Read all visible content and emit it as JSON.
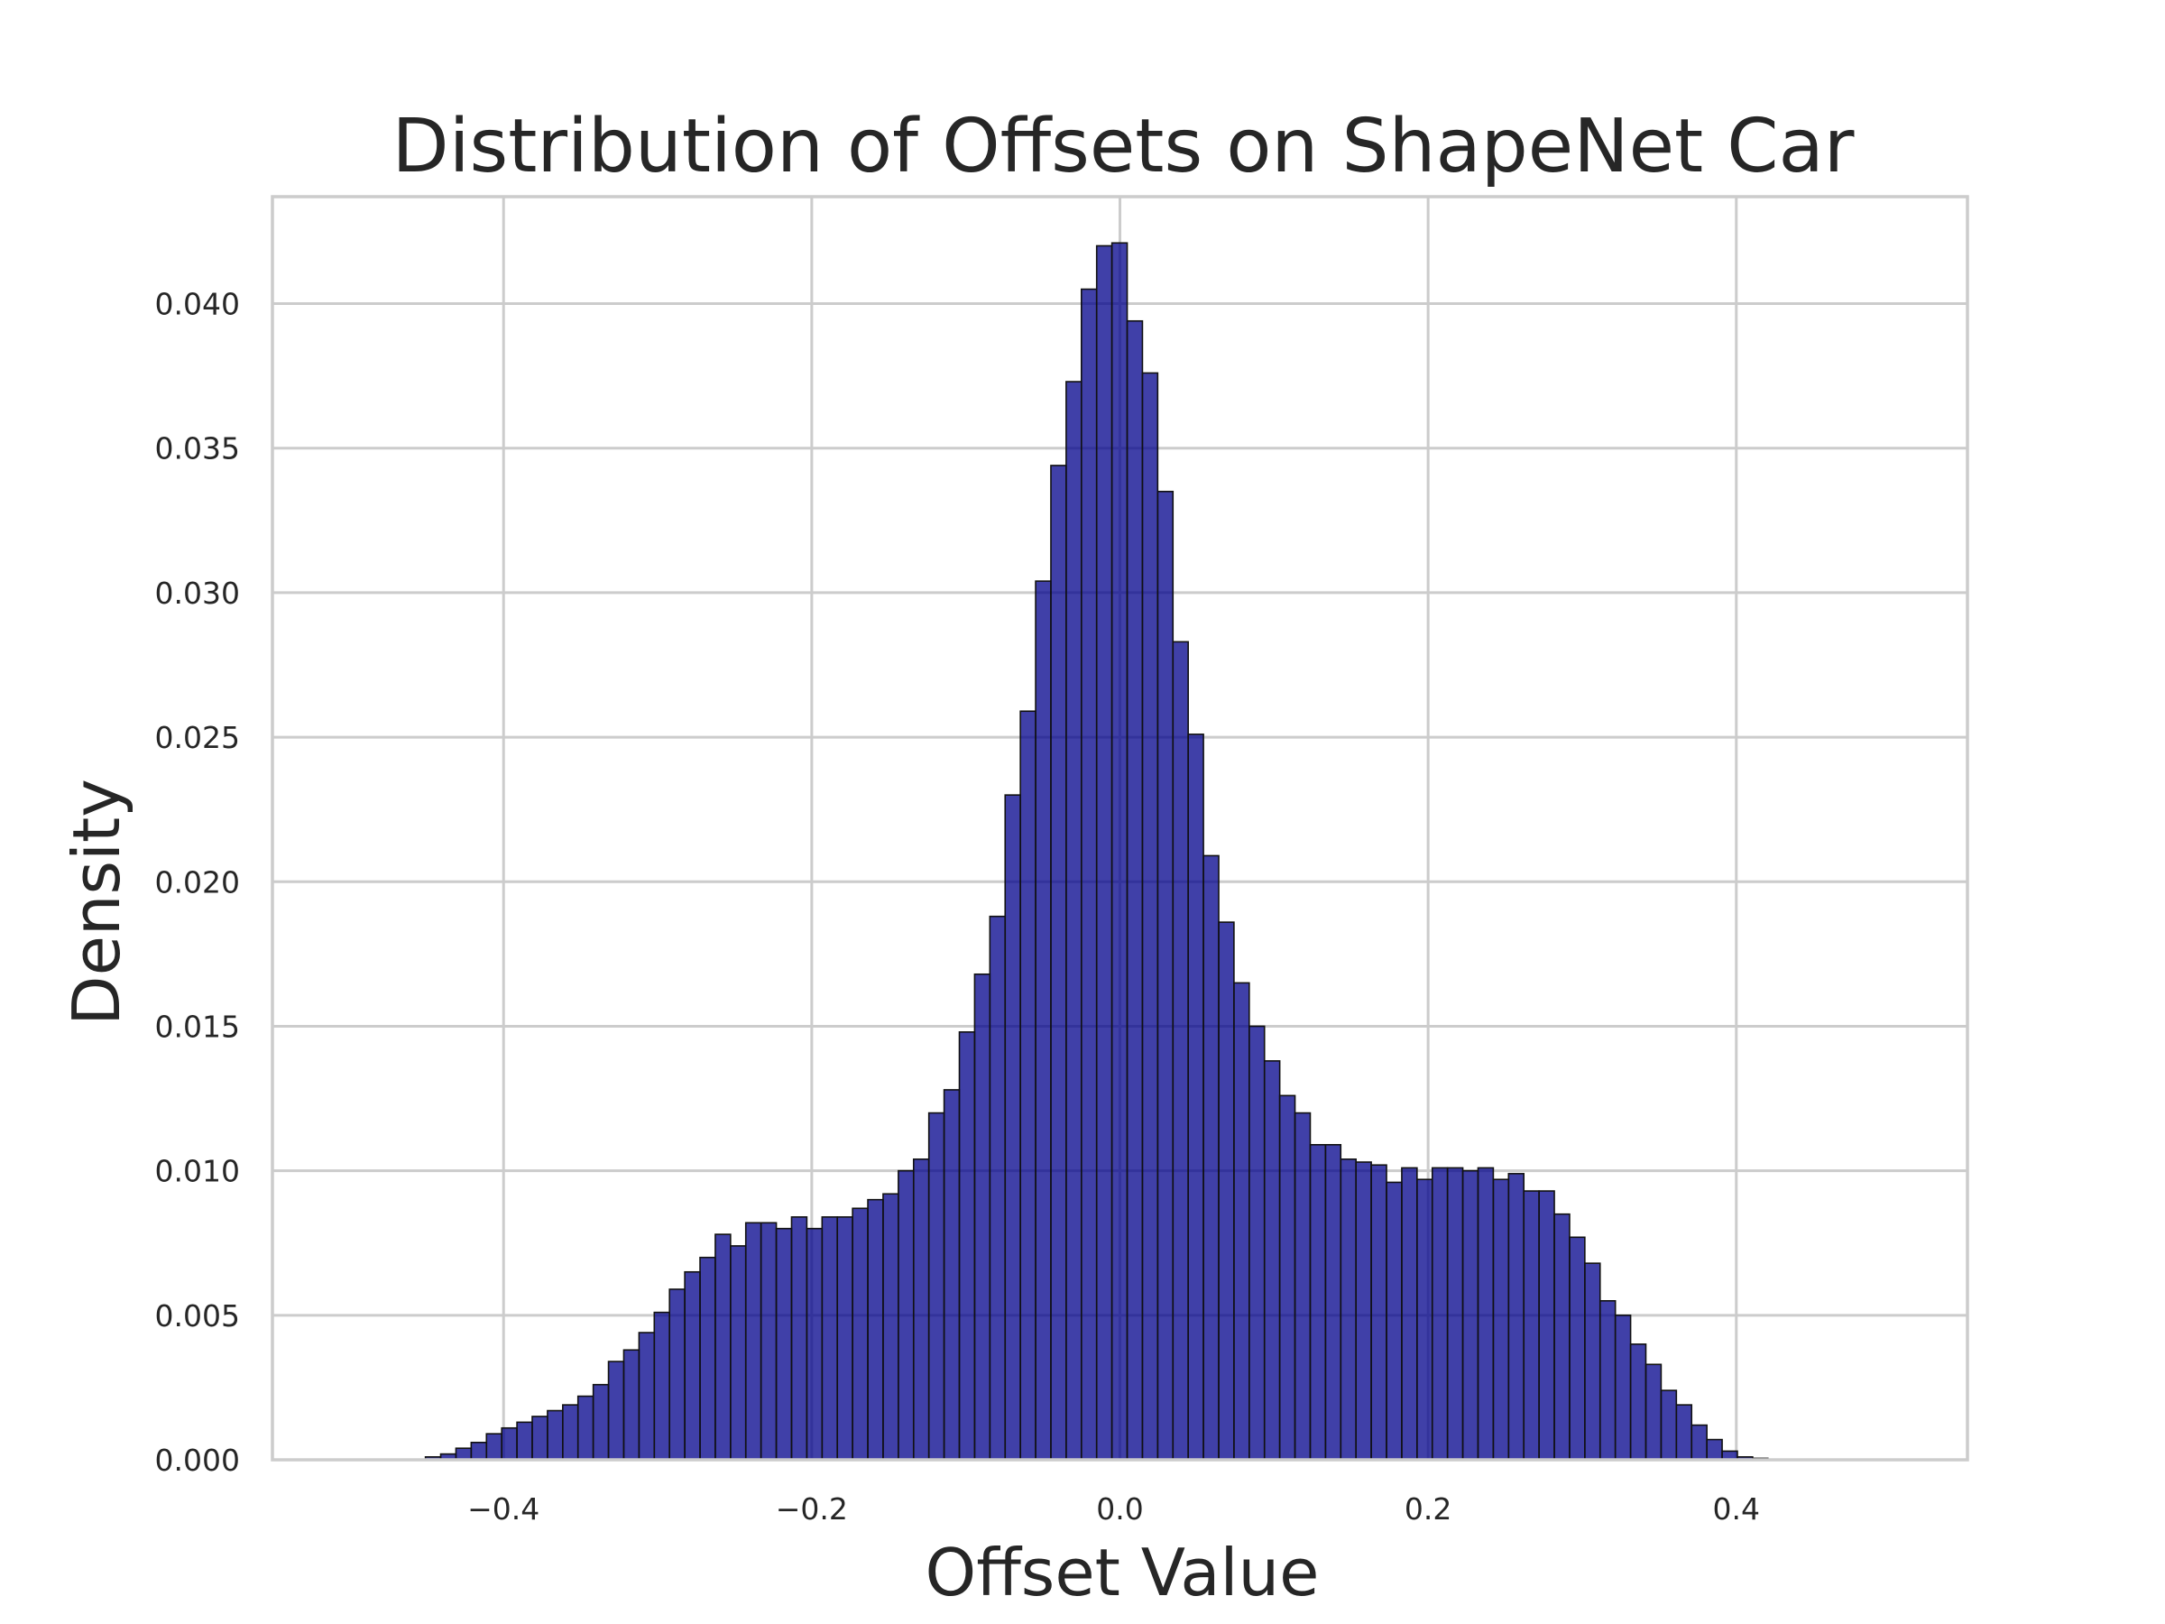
{
  "chart_data": {
    "type": "bar",
    "title": "Distribution of Offsets on ShapeNet Car",
    "xlabel": "Offset Value",
    "ylabel": "Density",
    "xlim": [
      -0.55,
      0.55
    ],
    "ylim": [
      0,
      0.0437
    ],
    "grid": true,
    "legend": "none",
    "bar_color": "#00008b",
    "bar_edge_color": "#111111",
    "xticks": [
      {
        "value": -0.4,
        "label": "−0.4"
      },
      {
        "value": -0.2,
        "label": "−0.2"
      },
      {
        "value": 0.0,
        "label": "0.0"
      },
      {
        "value": 0.2,
        "label": "0.2"
      },
      {
        "value": 0.4,
        "label": "0.4"
      }
    ],
    "yticks": [
      {
        "value": 0.0,
        "label": "0.000"
      },
      {
        "value": 0.005,
        "label": "0.005"
      },
      {
        "value": 0.01,
        "label": "0.010"
      },
      {
        "value": 0.015,
        "label": "0.015"
      },
      {
        "value": 0.02,
        "label": "0.020"
      },
      {
        "value": 0.025,
        "label": "0.025"
      },
      {
        "value": 0.03,
        "label": "0.030"
      },
      {
        "value": 0.035,
        "label": "0.035"
      },
      {
        "value": 0.04,
        "label": "0.040"
      }
    ],
    "bin_start": -0.4507,
    "bin_width": 0.0099,
    "values": [
      0.0001,
      0.0002,
      0.0004,
      0.0006,
      0.0009,
      0.0011,
      0.0013,
      0.0015,
      0.0017,
      0.0019,
      0.0022,
      0.0026,
      0.0034,
      0.0038,
      0.0044,
      0.0051,
      0.0059,
      0.0065,
      0.007,
      0.0078,
      0.0074,
      0.0082,
      0.0082,
      0.008,
      0.0084,
      0.008,
      0.0084,
      0.0084,
      0.0087,
      0.009,
      0.0092,
      0.01,
      0.0104,
      0.012,
      0.0128,
      0.0148,
      0.0168,
      0.0188,
      0.023,
      0.0259,
      0.0304,
      0.0344,
      0.0373,
      0.0405,
      0.042,
      0.0421,
      0.0394,
      0.0376,
      0.0335,
      0.0283,
      0.0251,
      0.0209,
      0.0186,
      0.0165,
      0.015,
      0.0138,
      0.0126,
      0.012,
      0.0109,
      0.0109,
      0.0104,
      0.0103,
      0.0102,
      0.0096,
      0.0101,
      0.0097,
      0.0101,
      0.0101,
      0.01,
      0.0101,
      0.0097,
      0.0099,
      0.0093,
      0.0093,
      0.0085,
      0.0077,
      0.0068,
      0.0055,
      0.005,
      0.004,
      0.0033,
      0.0024,
      0.0019,
      0.0012,
      0.0007,
      0.0003,
      0.0001,
      5e-05
    ]
  }
}
